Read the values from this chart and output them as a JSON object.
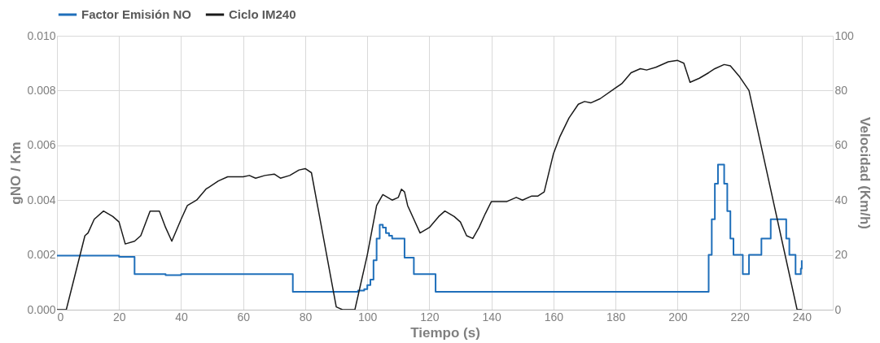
{
  "chart_data": {
    "type": "line",
    "xlabel": "Tiempo (s)",
    "ylabel": "gNO / Km",
    "y2label": "Velocidad (Km/h)",
    "xlim": [
      0,
      250
    ],
    "xticks": [
      0,
      20,
      40,
      60,
      80,
      100,
      120,
      140,
      160,
      180,
      200,
      220,
      240
    ],
    "ylim": [
      0,
      0.01
    ],
    "yticks": [
      {
        "value": 0,
        "label": "0.000"
      },
      {
        "value": 0.002,
        "label": "0.002"
      },
      {
        "value": 0.004,
        "label": "0.004"
      },
      {
        "value": 0.006,
        "label": "0.006"
      },
      {
        "value": 0.008,
        "label": "0.008"
      },
      {
        "value": 0.01,
        "label": "0.010"
      }
    ],
    "y2lim": [
      0,
      100
    ],
    "y2ticks": [
      0,
      20,
      40,
      60,
      80,
      100
    ],
    "grid": true,
    "legend": "top",
    "series": [
      {
        "name": "Factor Emisión NO",
        "type": "step",
        "color": "#1f6fba",
        "x": [
          0,
          20,
          25,
          35,
          40,
          76,
          97,
          99,
          100,
          101,
          102,
          103,
          104,
          105,
          106,
          107,
          108,
          112,
          115,
          122,
          210,
          211,
          212,
          213,
          215,
          216,
          217,
          218,
          221,
          223,
          227,
          230,
          235,
          236,
          238,
          239.7,
          240
        ],
        "values": [
          0.00197,
          0.00193,
          0.0013,
          0.00126,
          0.0013,
          0.00065,
          0.0007,
          0.00075,
          0.0009,
          0.0011,
          0.0018,
          0.0026,
          0.0031,
          0.003,
          0.0028,
          0.0027,
          0.0026,
          0.0019,
          0.0013,
          0.00065,
          0.002,
          0.0033,
          0.0046,
          0.0053,
          0.0046,
          0.0036,
          0.0026,
          0.002,
          0.0013,
          0.002,
          0.0026,
          0.0033,
          0.0026,
          0.002,
          0.0013,
          0.0015,
          0.0018
        ]
      },
      {
        "name": "Ciclo IM240",
        "axis": "y2",
        "color": "#1a1a1a",
        "x": [
          0,
          3,
          9,
          10,
          12,
          15,
          18,
          20,
          22,
          25,
          27,
          30,
          33,
          35,
          37,
          40,
          42,
          45,
          48,
          52,
          55,
          60,
          62,
          64,
          67,
          70,
          72,
          75,
          78,
          80,
          82,
          90,
          92,
          96,
          100,
          103,
          105,
          108,
          110,
          111,
          112,
          113,
          115,
          117,
          120,
          123,
          125,
          128,
          130,
          132,
          134,
          136,
          138,
          140,
          145,
          148,
          150,
          153,
          155,
          157,
          160,
          162,
          165,
          168,
          170,
          172,
          175,
          180,
          182,
          185,
          188,
          190,
          193,
          197,
          200,
          202,
          204,
          207,
          210,
          212,
          215,
          217,
          220,
          223,
          238.5,
          240
        ],
        "values": [
          0,
          0,
          27,
          28,
          33,
          36,
          34,
          32,
          24,
          25,
          27,
          36,
          36,
          30,
          25,
          33,
          38,
          40,
          44,
          47,
          48.5,
          48.5,
          49,
          48,
          49,
          49.5,
          48,
          49,
          51,
          51.5,
          50,
          1,
          0,
          0,
          20,
          38,
          42,
          40,
          41,
          44,
          43,
          38,
          33,
          28,
          30,
          34,
          36,
          34,
          32,
          27,
          26,
          30,
          35,
          39.5,
          39.5,
          41,
          40,
          41.5,
          41.5,
          43,
          57,
          63,
          70,
          75,
          76,
          75.5,
          77,
          81,
          82.5,
          86.5,
          88,
          87.5,
          88.5,
          90.5,
          91,
          90,
          83,
          84.5,
          86.5,
          88,
          89.5,
          89,
          85,
          80,
          0,
          0
        ]
      }
    ]
  }
}
